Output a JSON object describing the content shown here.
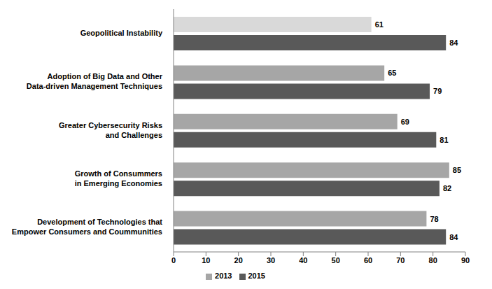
{
  "chart_data": {
    "type": "bar",
    "orientation": "horizontal",
    "categories": [
      "Geopolitical Instability",
      "Adoption of Big Data and Other\nData-driven Management Techniques",
      "Greater Cybersecurity Risks\nand Challenges",
      "Growth of Consummers\nin Emerging Economies",
      "Development of Technologies that\nEmpower Consumers and Coummunities"
    ],
    "series": [
      {
        "name": "2013",
        "color": "#a6a6a6",
        "colors": [
          "#d9d9d9",
          "#a6a6a6",
          "#a6a6a6",
          "#a6a6a6",
          "#a6a6a6"
        ],
        "values": [
          61,
          65,
          69,
          85,
          78
        ]
      },
      {
        "name": "2015",
        "color": "#595959",
        "values": [
          84,
          79,
          81,
          82,
          84
        ]
      }
    ],
    "xlim": [
      0,
      90
    ],
    "xticks": [
      0,
      10,
      20,
      30,
      40,
      50,
      60,
      70,
      80,
      90
    ],
    "grid": false,
    "legend": "bottom",
    "data_labels": true
  }
}
